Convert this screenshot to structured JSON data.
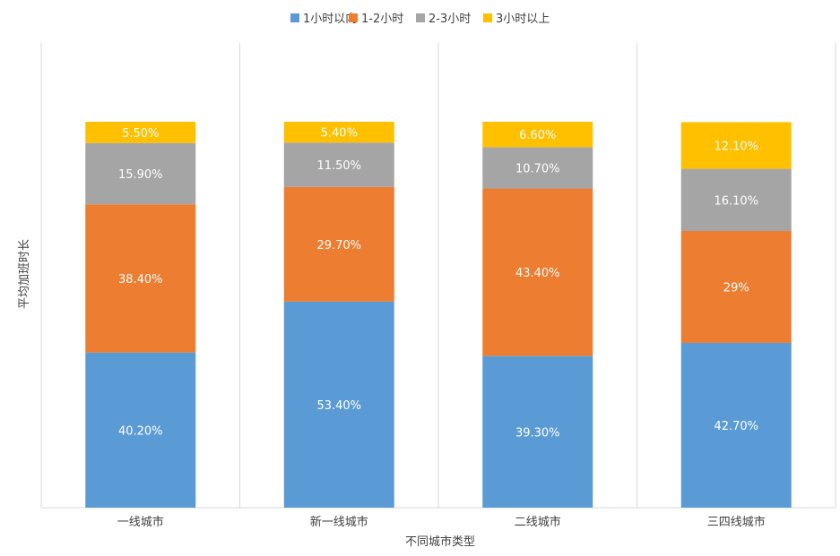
{
  "chart_data": {
    "type": "bar",
    "stacked": true,
    "title": "",
    "xlabel": "不同城市类型",
    "ylabel": "平均加班时长",
    "categories": [
      "一线城市",
      "新一线城市",
      "二线城市",
      "三四线城市"
    ],
    "ylim": [
      0,
      100
    ],
    "grid": "vertical category separators",
    "legend": {
      "position": "top"
    },
    "series": [
      {
        "name": "1小时以内",
        "color": "#5b9bd5",
        "values": [
          40.2,
          53.4,
          39.3,
          42.7
        ],
        "labels": [
          "40.20%",
          "53.40%",
          "39.30%",
          "42.70%"
        ]
      },
      {
        "name": "1-2小时",
        "color": "#ed7d31",
        "values": [
          38.4,
          29.7,
          43.4,
          29.0
        ],
        "labels": [
          "38.40%",
          "29.70%",
          "43.40%",
          "29%"
        ]
      },
      {
        "name": "2-3小时",
        "color": "#a5a5a5",
        "values": [
          15.9,
          11.5,
          10.7,
          16.1
        ],
        "labels": [
          "15.90%",
          "11.50%",
          "10.70%",
          "16.10%"
        ]
      },
      {
        "name": "3小时以上",
        "color": "#ffc000",
        "values": [
          5.5,
          5.4,
          6.6,
          12.1
        ],
        "labels": [
          "5.50%",
          "5.40%",
          "6.60%",
          "12.10%"
        ]
      }
    ]
  }
}
